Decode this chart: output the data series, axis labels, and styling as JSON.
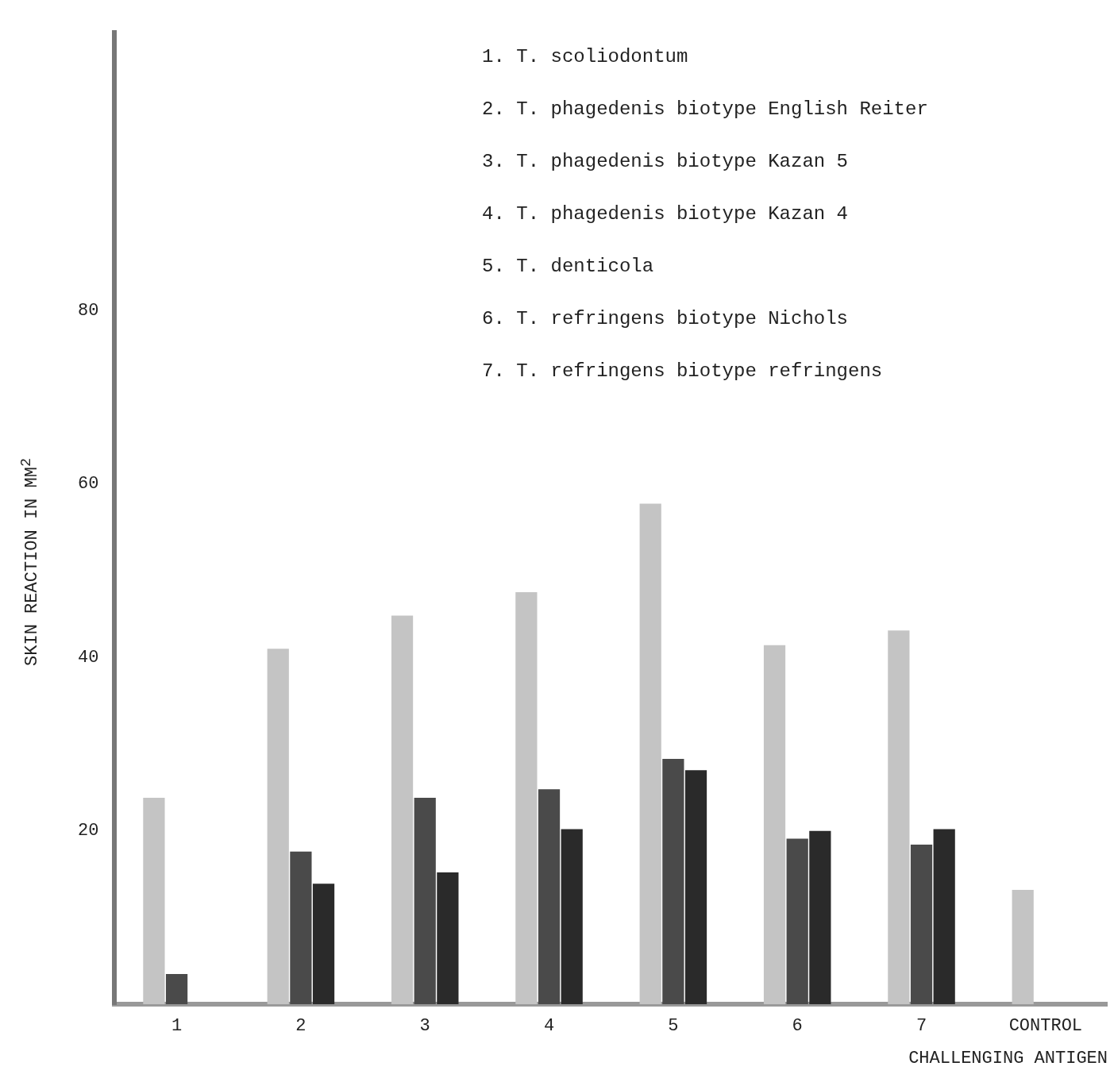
{
  "chart_data": {
    "type": "bar",
    "xlabel": "CHALLENGING ANTIGEN",
    "ylabel": "SKIN REACTION IN MM$^{2}$",
    "categories": [
      "1",
      "2",
      "3",
      "4",
      "5",
      "6",
      "7",
      "CONTROL"
    ],
    "series": [
      {
        "color": "#c4c4c4",
        "values": [
          23.8,
          41,
          44.8,
          47.5,
          57.7,
          41.4,
          43.1,
          13.2
        ]
      },
      {
        "color": "#4a4a4a",
        "values": [
          3.5,
          17.6,
          23.8,
          24.8,
          28.3,
          19.1,
          18.4,
          null
        ]
      },
      {
        "color": "#2a2a2a",
        "values": [
          null,
          13.9,
          15.2,
          20.2,
          27,
          20,
          20.2,
          null
        ]
      }
    ],
    "ylim": [
      0,
      112
    ],
    "yticks": [
      20,
      40,
      60,
      80
    ],
    "grid": false,
    "legend": false,
    "annotations": [
      "1. T. scoliodontum",
      "2. T. phagedenis biotype English Reiter",
      "3. T. phagedenis biotype Kazan 5",
      "4. T. phagedenis biotype Kazan 4",
      "5. T. denticola",
      "6. T. refringens biotype Nichols",
      "7. T. refringens biotype refringens"
    ]
  }
}
